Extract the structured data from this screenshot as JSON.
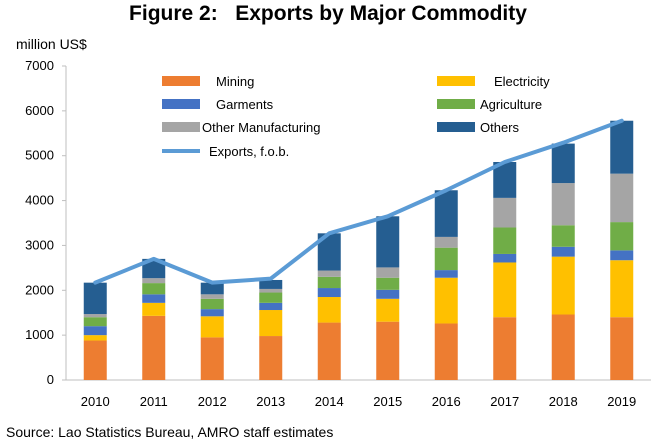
{
  "title": "Figure 2:   Exports by Major Commodity",
  "source": "Source:  Lao Statistics Bureau, AMRO staff estimates",
  "chart_data": {
    "type": "bar",
    "stacked": true,
    "title": "Figure 2:   Exports by Major Commodity",
    "ylabel": "million US$",
    "xlabel": "",
    "ylim": [
      0,
      7000
    ],
    "yticks": [
      0,
      1000,
      2000,
      3000,
      4000,
      5000,
      6000,
      7000
    ],
    "grid": false,
    "legend_position": "top",
    "categories": [
      "2010",
      "2011",
      "2012",
      "2013",
      "2014",
      "2015",
      "2016",
      "2017",
      "2018",
      "2019"
    ],
    "series": [
      {
        "name": "Mining",
        "color": "#ED7D31",
        "values": [
          880,
          1430,
          950,
          980,
          1280,
          1300,
          1260,
          1400,
          1460,
          1400
        ]
      },
      {
        "name": "Electricity",
        "color": "#FFC000",
        "values": [
          120,
          290,
          470,
          580,
          570,
          510,
          1020,
          1220,
          1290,
          1270
        ]
      },
      {
        "name": "Garments",
        "color": "#4472C4",
        "values": [
          200,
          190,
          160,
          160,
          200,
          200,
          170,
          190,
          220,
          220
        ]
      },
      {
        "name": "Agriculture",
        "color": "#70AD47",
        "values": [
          200,
          250,
          230,
          230,
          250,
          270,
          500,
          590,
          480,
          630
        ]
      },
      {
        "name": "Other Manufacturing",
        "color": "#A5A5A5",
        "values": [
          70,
          110,
          100,
          80,
          140,
          230,
          240,
          660,
          940,
          1080
        ]
      },
      {
        "name": "Others",
        "color": "#255E91",
        "values": [
          700,
          430,
          260,
          200,
          830,
          1140,
          1040,
          800,
          880,
          1180
        ]
      },
      {
        "name": "Exports, f.o.b.",
        "color": "#5B9BD5",
        "type": "line",
        "values": [
          2170,
          2700,
          2170,
          2260,
          3270,
          3650,
          4230,
          4860,
          5290,
          5780
        ]
      }
    ]
  }
}
